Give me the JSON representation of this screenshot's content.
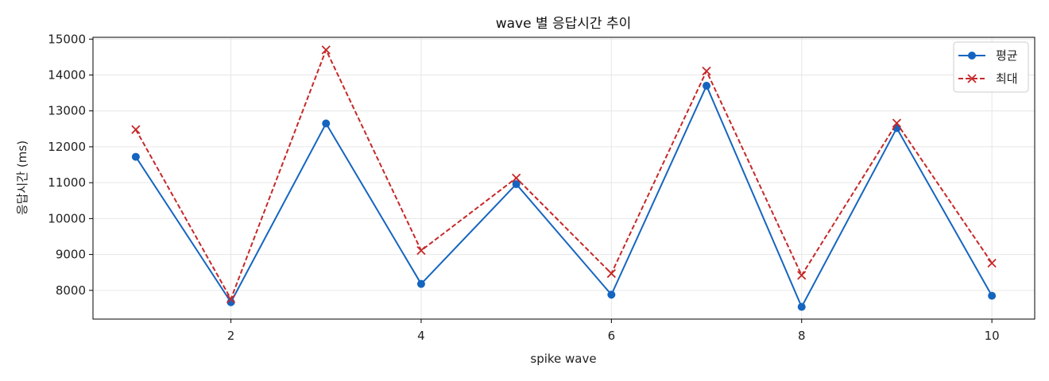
{
  "chart_data": {
    "type": "line",
    "title": "wave 별 응답시간 추이",
    "xlabel": "spike wave",
    "ylabel": "응답시간 (ms)",
    "x": [
      1,
      2,
      3,
      4,
      5,
      6,
      7,
      8,
      9,
      10
    ],
    "xlim": [
      0.55,
      10.45
    ],
    "ylim": [
      7200,
      15050
    ],
    "xticks": [
      2,
      4,
      6,
      8,
      10
    ],
    "yticks": [
      8000,
      9000,
      10000,
      11000,
      12000,
      13000,
      14000,
      15000
    ],
    "grid": true,
    "legend_position": "top-right",
    "series": [
      {
        "name": "평균",
        "values": [
          11720,
          7670,
          12650,
          8180,
          10960,
          7880,
          13700,
          7540,
          12520,
          7850
        ],
        "color": "#1565c0",
        "line_style": "solid",
        "marker": "circle"
      },
      {
        "name": "최대",
        "values": [
          12480,
          7760,
          14700,
          9110,
          11130,
          8470,
          14110,
          8420,
          12660,
          8760
        ],
        "color": "#c62828",
        "line_style": "dashed",
        "marker": "x"
      }
    ]
  }
}
